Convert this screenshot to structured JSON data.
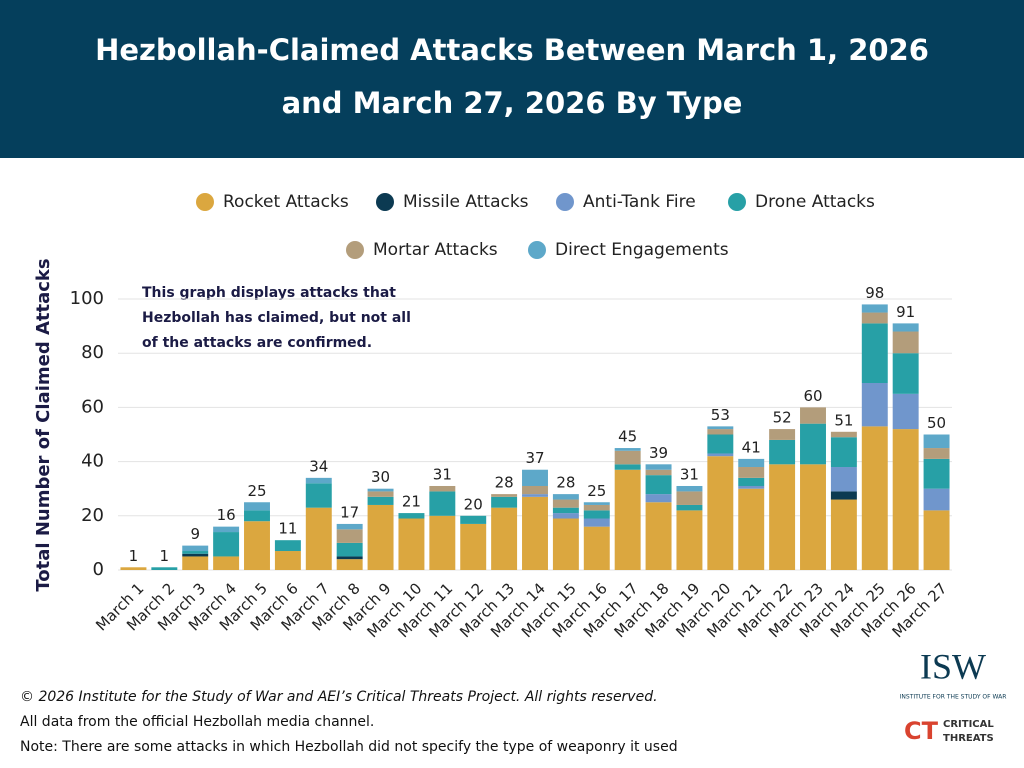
{
  "chart_data": {
    "type": "stacked-bar",
    "title": [
      "Hezbollah-Claimed Attacks Between March 1, 2026",
      "and March 27, 2026 By Type"
    ],
    "annotation": [
      "This graph displays attacks that",
      "Hezbollah has claimed, but not all",
      "of the attacks are confirmed."
    ],
    "ylabel": "Total Number of Claimed Attacks",
    "categories": [
      "March 1",
      "March 2",
      "March 3",
      "March 4",
      "March 5",
      "March 6",
      "March 7",
      "March 8",
      "March 9",
      "March 10",
      "March 11",
      "March 12",
      "March 13",
      "March 14",
      "March 15",
      "March 16",
      "March 17",
      "March 18",
      "March 19",
      "March 20",
      "March 21",
      "March 22",
      "March 23",
      "March 24",
      "March 25",
      "March 26",
      "March 27"
    ],
    "series": [
      {
        "name": "Rocket Attacks",
        "color": "#dba73f",
        "values": [
          1,
          0,
          5,
          5,
          18,
          7,
          23,
          4,
          24,
          19,
          20,
          17,
          23,
          27,
          19,
          16,
          37,
          25,
          22,
          42,
          30,
          39,
          39,
          26,
          53,
          52,
          22
        ]
      },
      {
        "name": "Missile Attacks",
        "color": "#0c3a52",
        "values": [
          0,
          0,
          1,
          0,
          0,
          0,
          0,
          1,
          0,
          0,
          0,
          0,
          0,
          0,
          0,
          0,
          0,
          0,
          0,
          0,
          0,
          0,
          0,
          3,
          0,
          0,
          0
        ]
      },
      {
        "name": "Anti-Tank Fire",
        "color": "#7096cc",
        "values": [
          0,
          0,
          0,
          0,
          0,
          0,
          0,
          0,
          0,
          0,
          0,
          0,
          0,
          1,
          2,
          3,
          0,
          3,
          0,
          1,
          1,
          0,
          0,
          9,
          16,
          13,
          8
        ]
      },
      {
        "name": "Drone Attacks",
        "color": "#27a0a6",
        "values": [
          0,
          1,
          1,
          9,
          4,
          4,
          9,
          5,
          3,
          2,
          9,
          3,
          4,
          0,
          2,
          3,
          2,
          7,
          2,
          7,
          3,
          9,
          15,
          11,
          22,
          15,
          11
        ]
      },
      {
        "name": "Mortar Attacks",
        "color": "#b39d7b",
        "values": [
          0,
          0,
          0,
          0,
          0,
          0,
          0,
          5,
          2,
          0,
          2,
          0,
          1,
          3,
          3,
          2,
          5,
          2,
          5,
          2,
          4,
          4,
          6,
          2,
          4,
          8,
          4
        ]
      },
      {
        "name": "Direct Engagements",
        "color": "#5da8c9",
        "values": [
          0,
          0,
          2,
          2,
          3,
          0,
          2,
          2,
          1,
          0,
          0,
          0,
          0,
          6,
          2,
          1,
          1,
          2,
          2,
          1,
          3,
          0,
          0,
          0,
          3,
          3,
          5
        ]
      }
    ],
    "totals": [
      1,
      1,
      9,
      16,
      25,
      11,
      34,
      17,
      30,
      21,
      31,
      20,
      28,
      37,
      28,
      25,
      45,
      39,
      31,
      53,
      41,
      52,
      60,
      51,
      98,
      91,
      50
    ],
    "ylim": [
      0,
      100
    ],
    "yticks": [
      0,
      20,
      40,
      60,
      80,
      100
    ],
    "grid": true
  },
  "footer": [
    "© 2026 Institute for the Study of War and AEI’s Critical Threats Project. All rights reserved.",
    "All data from the official Hezbollah media channel.",
    "Note: There are some attacks in which Hezbollah did not specify the type of weaponry it used"
  ],
  "logos": {
    "isw": "ISW",
    "isw_sub": "INSTITUTE FOR THE STUDY OF WAR",
    "ct": "CT",
    "ct_name": [
      "CRITICAL",
      "THREATS"
    ]
  }
}
